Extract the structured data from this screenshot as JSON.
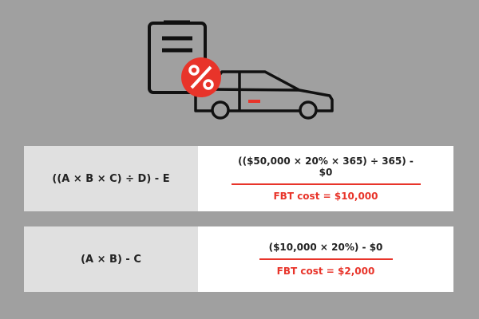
{
  "colors": {
    "background": "#a0a0a0",
    "accent": "#e8342a",
    "label_cell": "#e0e0e0"
  },
  "icon": {
    "name": "car-fbt-clipboard-percent-icon",
    "badge_text": "%"
  },
  "rows": [
    {
      "formula": "((A × B × C) ÷ D) - E",
      "calculation": "(($50,000 × 20% × 365) ÷ 365) - $0",
      "result": "FBT cost = $10,000"
    },
    {
      "formula": "(A × B) - C",
      "calculation": "($10,000 × 20%) - $0",
      "result": "FBT cost = $2,000"
    }
  ]
}
